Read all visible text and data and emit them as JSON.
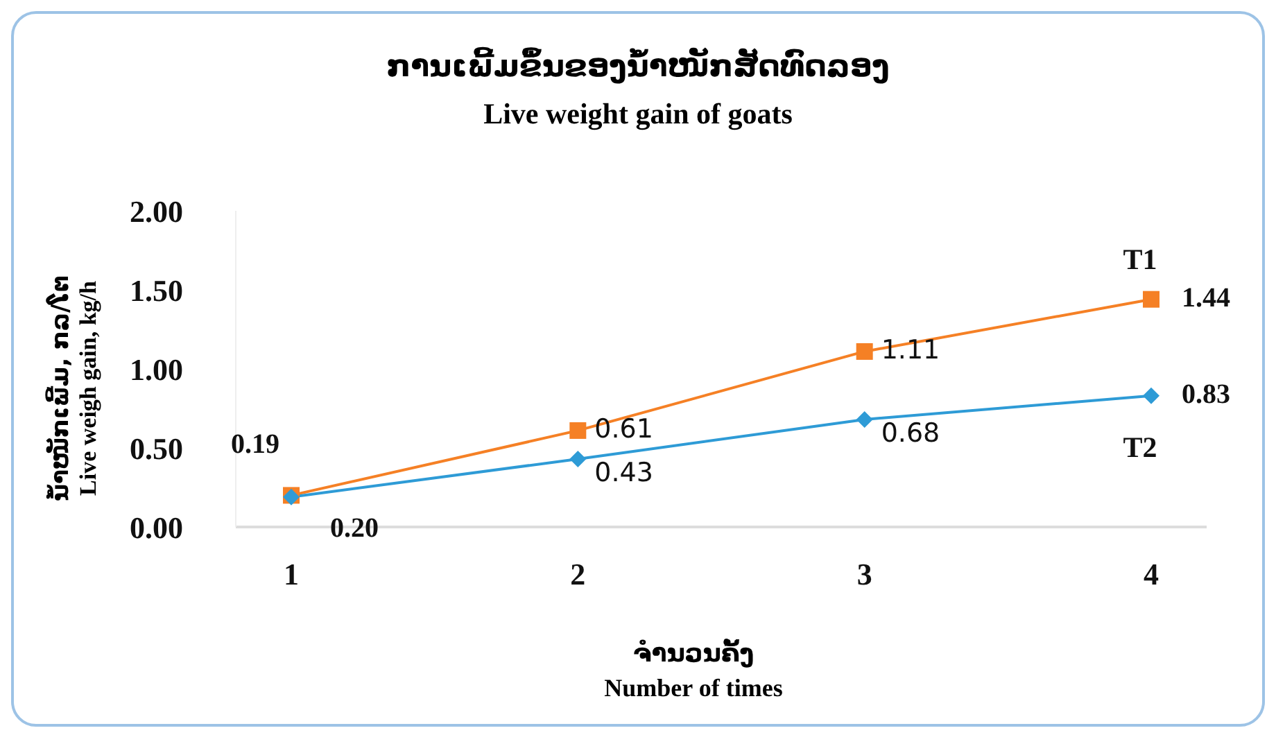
{
  "chart_data": {
    "type": "line",
    "title": "ການເພີ້ມຂຶ້ນຂອງນໍ້າໜັກສັດທົດລອງ",
    "subtitle": "Live weight gain of goats",
    "xlabel": "ຈຳນວນຄັ້ງ\nNumber of times",
    "ylabel": "ນ້ຳໜັກເພີ້ມ, ກລ/ໂຕ\nLive weigh gain, kg/h",
    "categories": [
      "1",
      "2",
      "3",
      "4"
    ],
    "series": [
      {
        "name": "T1",
        "color": "#f58025",
        "marker": "square",
        "values": [
          0.2,
          0.61,
          1.11,
          1.44
        ],
        "value_labels": [
          "0.20",
          "0.61",
          "1.11",
          "1.44"
        ]
      },
      {
        "name": "T2",
        "color": "#2e9bd6",
        "marker": "diamond",
        "values": [
          0.19,
          0.43,
          0.68,
          0.83
        ],
        "value_labels": [
          "0.19",
          "0.43",
          "0.68",
          "0.83"
        ]
      }
    ],
    "ylim": [
      0,
      2
    ],
    "yticks": [
      {
        "value": 0,
        "label": "0.00"
      },
      {
        "value": 0.5,
        "label": "0.50"
      },
      {
        "value": 1,
        "label": "1.00"
      },
      {
        "value": 1.5,
        "label": "1.50"
      },
      {
        "value": 2,
        "label": "2.00"
      }
    ],
    "legend": false
  }
}
